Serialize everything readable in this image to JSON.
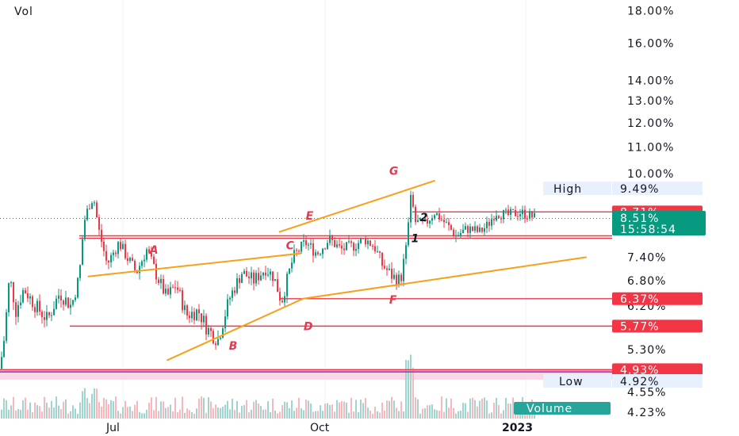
{
  "chart_data": {
    "type": "candlestick",
    "title": "Vol",
    "price_axis": {
      "scale": "log",
      "tick_labels": [
        "18.00%",
        "16.00%",
        "14.00%",
        "13.00%",
        "12.00%",
        "11.00%",
        "10.00%",
        "7.40%",
        "6.80%",
        "6.20%",
        "5.30%",
        "4.55%",
        "4.23%"
      ],
      "tick_values": [
        18.0,
        16.0,
        14.0,
        13.0,
        12.0,
        11.0,
        10.0,
        7.4,
        6.8,
        6.2,
        5.3,
        4.55,
        4.23
      ]
    },
    "time_axis": {
      "labels": [
        "Jul",
        "Oct",
        "2023"
      ]
    },
    "current_price": {
      "value": "8.51%",
      "countdown": "15:58:54"
    },
    "price_badges": [
      {
        "label": "8.71%",
        "value": 8.71,
        "color": "#f23645"
      },
      {
        "label": "6.37%",
        "value": 6.37,
        "color": "#f23645"
      },
      {
        "label": "5.77%",
        "value": 5.77,
        "color": "#f23645"
      },
      {
        "label": "4.93%",
        "value": 4.93,
        "color": "#f23645"
      }
    ],
    "high": {
      "label": "High",
      "value_label": "9.49%",
      "value": 9.49
    },
    "low": {
      "label": "Low",
      "value_label": "4.92%",
      "value": 4.92
    },
    "horizontal_lines": [
      8.71,
      7.99,
      7.92,
      6.37,
      5.77,
      4.93
    ],
    "wave_labels": [
      {
        "text": "A",
        "date": "2022-07-15",
        "price": 7.6
      },
      {
        "text": "B",
        "date": "2022-08-20",
        "price": 5.38
      },
      {
        "text": "C",
        "date": "2022-09-15",
        "price": 7.72
      },
      {
        "text": "D",
        "date": "2022-09-23",
        "price": 5.77
      },
      {
        "text": "E",
        "date": "2022-09-24",
        "price": 8.6
      },
      {
        "text": "F",
        "date": "2022-11-01",
        "price": 6.35
      },
      {
        "text": "G",
        "date": "2022-11-01",
        "price": 10.1
      },
      {
        "text": "1",
        "date": "2022-11-11",
        "price": 7.92
      },
      {
        "text": "2",
        "date": "2022-11-15",
        "price": 8.55
      }
    ],
    "trend_lines": [
      {
        "from": [
          "2022-06-15",
          6.9
        ],
        "to": [
          "2022-09-20",
          7.5
        ]
      },
      {
        "from": [
          "2022-07-21",
          5.1
        ],
        "to": [
          "2022-09-21",
          6.37
        ]
      },
      {
        "from": [
          "2022-09-21",
          6.37
        ],
        "to": [
          "2023-01-28",
          7.4
        ]
      },
      {
        "from": [
          "2022-09-10",
          8.1
        ],
        "to": [
          "2022-11-20",
          9.75
        ]
      }
    ],
    "volume_label": "Volume",
    "colors": {
      "up": "#089981",
      "down": "#f23645",
      "trend": "#f7a11a",
      "level": "#f23645",
      "low_line": "#9c27b0"
    }
  }
}
